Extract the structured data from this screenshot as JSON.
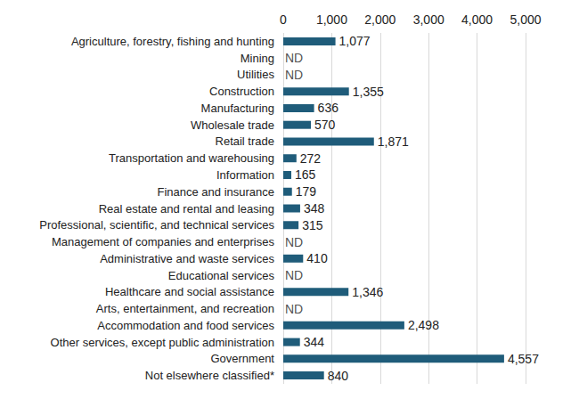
{
  "chart_data": {
    "type": "bar",
    "orientation": "horizontal",
    "categories": [
      "Agriculture, forestry, fishing and hunting",
      "Mining",
      "Utilities",
      "Construction",
      "Manufacturing",
      "Wholesale trade",
      "Retail trade",
      "Transportation and warehousing",
      "Information",
      "Finance and insurance",
      "Real estate and rental and leasing",
      "Professional, scientific, and technical services",
      "Management of companies and enterprises",
      "Administrative and waste services",
      "Educational services",
      "Healthcare and social assistance",
      "Arts, entertainment, and recreation",
      "Accommodation and food services",
      "Other services, except public administration",
      "Government",
      "Not elsewhere classified*"
    ],
    "values": [
      1077,
      null,
      null,
      1355,
      636,
      570,
      1871,
      272,
      165,
      179,
      348,
      315,
      null,
      410,
      null,
      1346,
      null,
      2498,
      344,
      4557,
      840
    ],
    "value_labels": [
      "1,077",
      "ND",
      "ND",
      "1,355",
      "636",
      "570",
      "1,871",
      "272",
      "165",
      "179",
      "348",
      "315",
      "ND",
      "410",
      "ND",
      "1,346",
      "ND",
      "2,498",
      "344",
      "4,557",
      "840"
    ],
    "color": "#1f5c7a",
    "xlim": [
      0,
      5000
    ],
    "xticks": [
      0,
      {
        "value": 1000,
        "label": "1,000"
      },
      {
        "value": 2000,
        "label": "2,000"
      },
      {
        "value": 3000,
        "label": "3,000"
      },
      {
        "value": 4000,
        "label": "4,000"
      },
      {
        "value": 5000,
        "label": "5,000"
      }
    ],
    "grid": true,
    "data_labels": true
  }
}
